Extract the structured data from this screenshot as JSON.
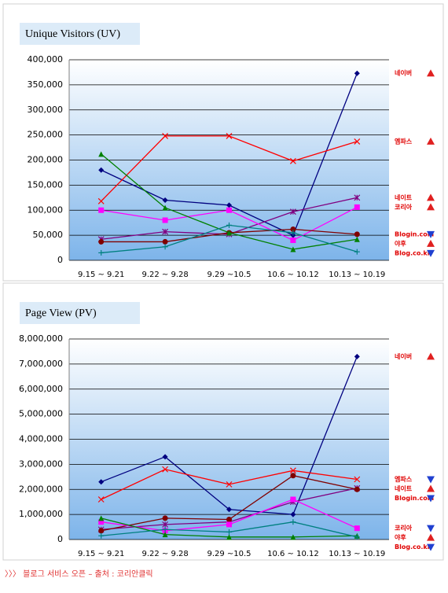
{
  "chart_data": [
    {
      "type": "line",
      "title": "Unique Visitors (UV)",
      "categories": [
        "9.15 ~ 9.21",
        "9.22 ~ 9.28",
        "9.29 ~10.5",
        "10.6 ~ 10.12",
        "10.13 ~ 10.19"
      ],
      "ylim": [
        0,
        400000
      ],
      "yticks": [
        0,
        {
          "value": 50000,
          "label": "50,000"
        },
        {
          "value": 100000,
          "label": "100,000"
        },
        {
          "value": 150000,
          "label": "150,000"
        },
        {
          "value": 200000,
          "label": "200,000"
        },
        {
          "value": 250000,
          "label": "250,000"
        },
        {
          "value": 300000,
          "label": "300,000"
        },
        {
          "value": 350000,
          "label": "350,000"
        },
        {
          "value": 400000,
          "label": "400,000"
        }
      ],
      "grid": true,
      "series": [
        {
          "name": "네이버",
          "color": "#000080",
          "marker": "diamond",
          "trend": "up",
          "values": [
            180000,
            120000,
            110000,
            50000,
            373000
          ]
        },
        {
          "name": "엠파스",
          "color": "#ff0000",
          "marker": "x",
          "trend": "up",
          "values": [
            118000,
            248000,
            248000,
            198000,
            237000
          ]
        },
        {
          "name": "네이트",
          "color": "#800080",
          "marker": "asterisk",
          "trend": "up",
          "values": [
            42000,
            57000,
            52000,
            97000,
            125000
          ]
        },
        {
          "name": "코리아",
          "color": "#ff00ff",
          "marker": "square",
          "trend": "up",
          "values": [
            100000,
            80000,
            100000,
            40000,
            106000
          ]
        },
        {
          "name": "Blogin.com",
          "color": "#800000",
          "marker": "circle",
          "trend": "down",
          "values": [
            37000,
            37000,
            55000,
            62000,
            52000
          ]
        },
        {
          "name": "야후",
          "color": "#008000",
          "marker": "triangle",
          "trend": "up",
          "values": [
            212000,
            105000,
            55000,
            22000,
            42000
          ]
        },
        {
          "name": "Blog.co.kr",
          "color": "#008080",
          "marker": "plus",
          "trend": "down",
          "values": [
            15000,
            27000,
            70000,
            55000,
            17000
          ]
        }
      ]
    },
    {
      "type": "line",
      "title": "Page View (PV)",
      "categories": [
        "9.15 ~ 9.21",
        "9.22 ~ 9.28",
        "9.29 ~10.5",
        "10.6 ~ 10.12",
        "10.13 ~ 10.19"
      ],
      "ylim": [
        0,
        8000000
      ],
      "yticks": [
        0,
        {
          "value": 1000000,
          "label": "1,000,000"
        },
        {
          "value": 2000000,
          "label": "2,000,000"
        },
        {
          "value": 3000000,
          "label": "3,000,000"
        },
        {
          "value": 4000000,
          "label": "4,000,000"
        },
        {
          "value": 5000000,
          "label": "5,000,000"
        },
        {
          "value": 6000000,
          "label": "6,000,000"
        },
        {
          "value": 7000000,
          "label": "7,000,000"
        },
        {
          "value": 8000000,
          "label": "8,000,000"
        }
      ],
      "grid": true,
      "series": [
        {
          "name": "네이버",
          "color": "#000080",
          "marker": "diamond",
          "trend": "up",
          "values": [
            2300000,
            3300000,
            1200000,
            1000000,
            7300000
          ]
        },
        {
          "name": "엠파스",
          "color": "#ff0000",
          "marker": "x",
          "trend": "down",
          "values": [
            1600000,
            2800000,
            2200000,
            2750000,
            2400000
          ]
        },
        {
          "name": "네이트",
          "color": "#800080",
          "marker": "asterisk",
          "trend": "up",
          "values": [
            400000,
            600000,
            700000,
            1500000,
            2050000
          ]
        },
        {
          "name": "Blogin.com",
          "color": "#800000",
          "marker": "circle",
          "trend": "down",
          "values": [
            350000,
            850000,
            800000,
            2550000,
            2000000
          ]
        },
        {
          "name": "코리아",
          "color": "#ff00ff",
          "marker": "square",
          "trend": "down",
          "values": [
            700000,
            350000,
            600000,
            1600000,
            450000
          ]
        },
        {
          "name": "야후",
          "color": "#008000",
          "marker": "triangle",
          "trend": "up",
          "values": [
            850000,
            200000,
            100000,
            100000,
            150000
          ]
        },
        {
          "name": "Blog.co.kr",
          "color": "#008080",
          "marker": "plus",
          "trend": "down",
          "values": [
            150000,
            400000,
            300000,
            700000,
            100000
          ]
        }
      ]
    }
  ],
  "source": "〉〉〉 블로그 서비스 오픈 – 출처 : 코리안클릭"
}
